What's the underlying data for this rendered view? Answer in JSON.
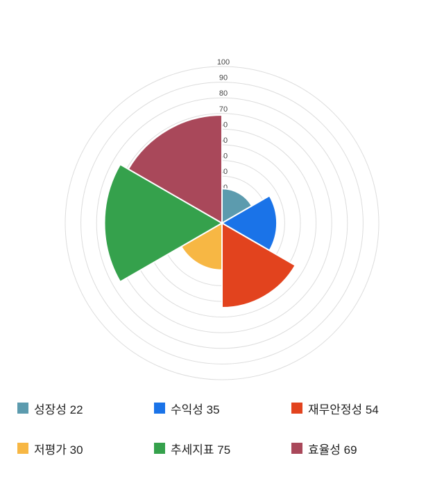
{
  "chart_data": {
    "type": "polar-area",
    "title": "",
    "categories": [
      "성장성",
      "수익성",
      "재무안정성",
      "저평가",
      "추세지표",
      "효율성"
    ],
    "values": [
      22,
      35,
      54,
      30,
      75,
      69
    ],
    "colors": [
      "#5C9BAE",
      "#1A73E8",
      "#E2431E",
      "#F7B744",
      "#35A14C",
      "#A9485A"
    ],
    "axis": {
      "min": 0,
      "max": 100,
      "tick_interval": 10,
      "tick_labels": [
        "100",
        "90",
        "80",
        "70",
        "60",
        "50",
        "40",
        "30",
        "20",
        "10"
      ]
    },
    "start_angle_deg": 0,
    "direction": "clockwise",
    "grid": true,
    "grid_color": "#dcdcdc",
    "wedge_stroke_color": "#ffffff",
    "legend_position": "bottom"
  },
  "legend": {
    "items": [
      {
        "label": "성장성",
        "value": 22,
        "color": "#5C9BAE"
      },
      {
        "label": "수익성",
        "value": 35,
        "color": "#1A73E8"
      },
      {
        "label": "재무안정성",
        "value": 54,
        "color": "#E2431E"
      },
      {
        "label": "저평가",
        "value": 30,
        "color": "#F7B744"
      },
      {
        "label": "추세지표",
        "value": 75,
        "color": "#35A14C"
      },
      {
        "label": "효율성",
        "value": 69,
        "color": "#A9485A"
      }
    ]
  }
}
